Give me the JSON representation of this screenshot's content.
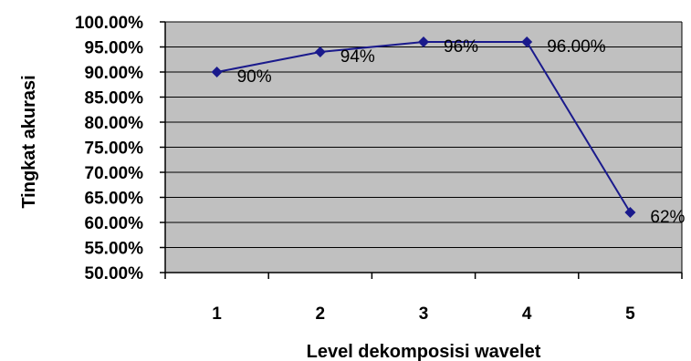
{
  "chart_data": {
    "type": "line",
    "categories": [
      "1",
      "2",
      "3",
      "4",
      "5"
    ],
    "series": [
      {
        "values": [
          0.9,
          0.94,
          0.96,
          0.96,
          0.62
        ],
        "data_labels": [
          "90%",
          "94%",
          "96%",
          "96.00%",
          "62%"
        ]
      }
    ],
    "xlabel": "Level dekomposisi wavelet",
    "ylabel": "Tingkat akurasi",
    "ylim": [
      0.5,
      1.0
    ],
    "y_ticks": [
      "50.00%",
      "55.00%",
      "60.00%",
      "65.00%",
      "70.00%",
      "75.00%",
      "80.00%",
      "85.00%",
      "90.00%",
      "95.00%",
      "100.00%"
    ],
    "y_tick_values": [
      0.5,
      0.55,
      0.6,
      0.65,
      0.7,
      0.75,
      0.8,
      0.85,
      0.9,
      0.95,
      1.0
    ],
    "grid": true,
    "legend": "none",
    "colors": {
      "plot_background": "#c0c0c0",
      "line": "#1a1a8c",
      "gridline": "#000000"
    }
  }
}
